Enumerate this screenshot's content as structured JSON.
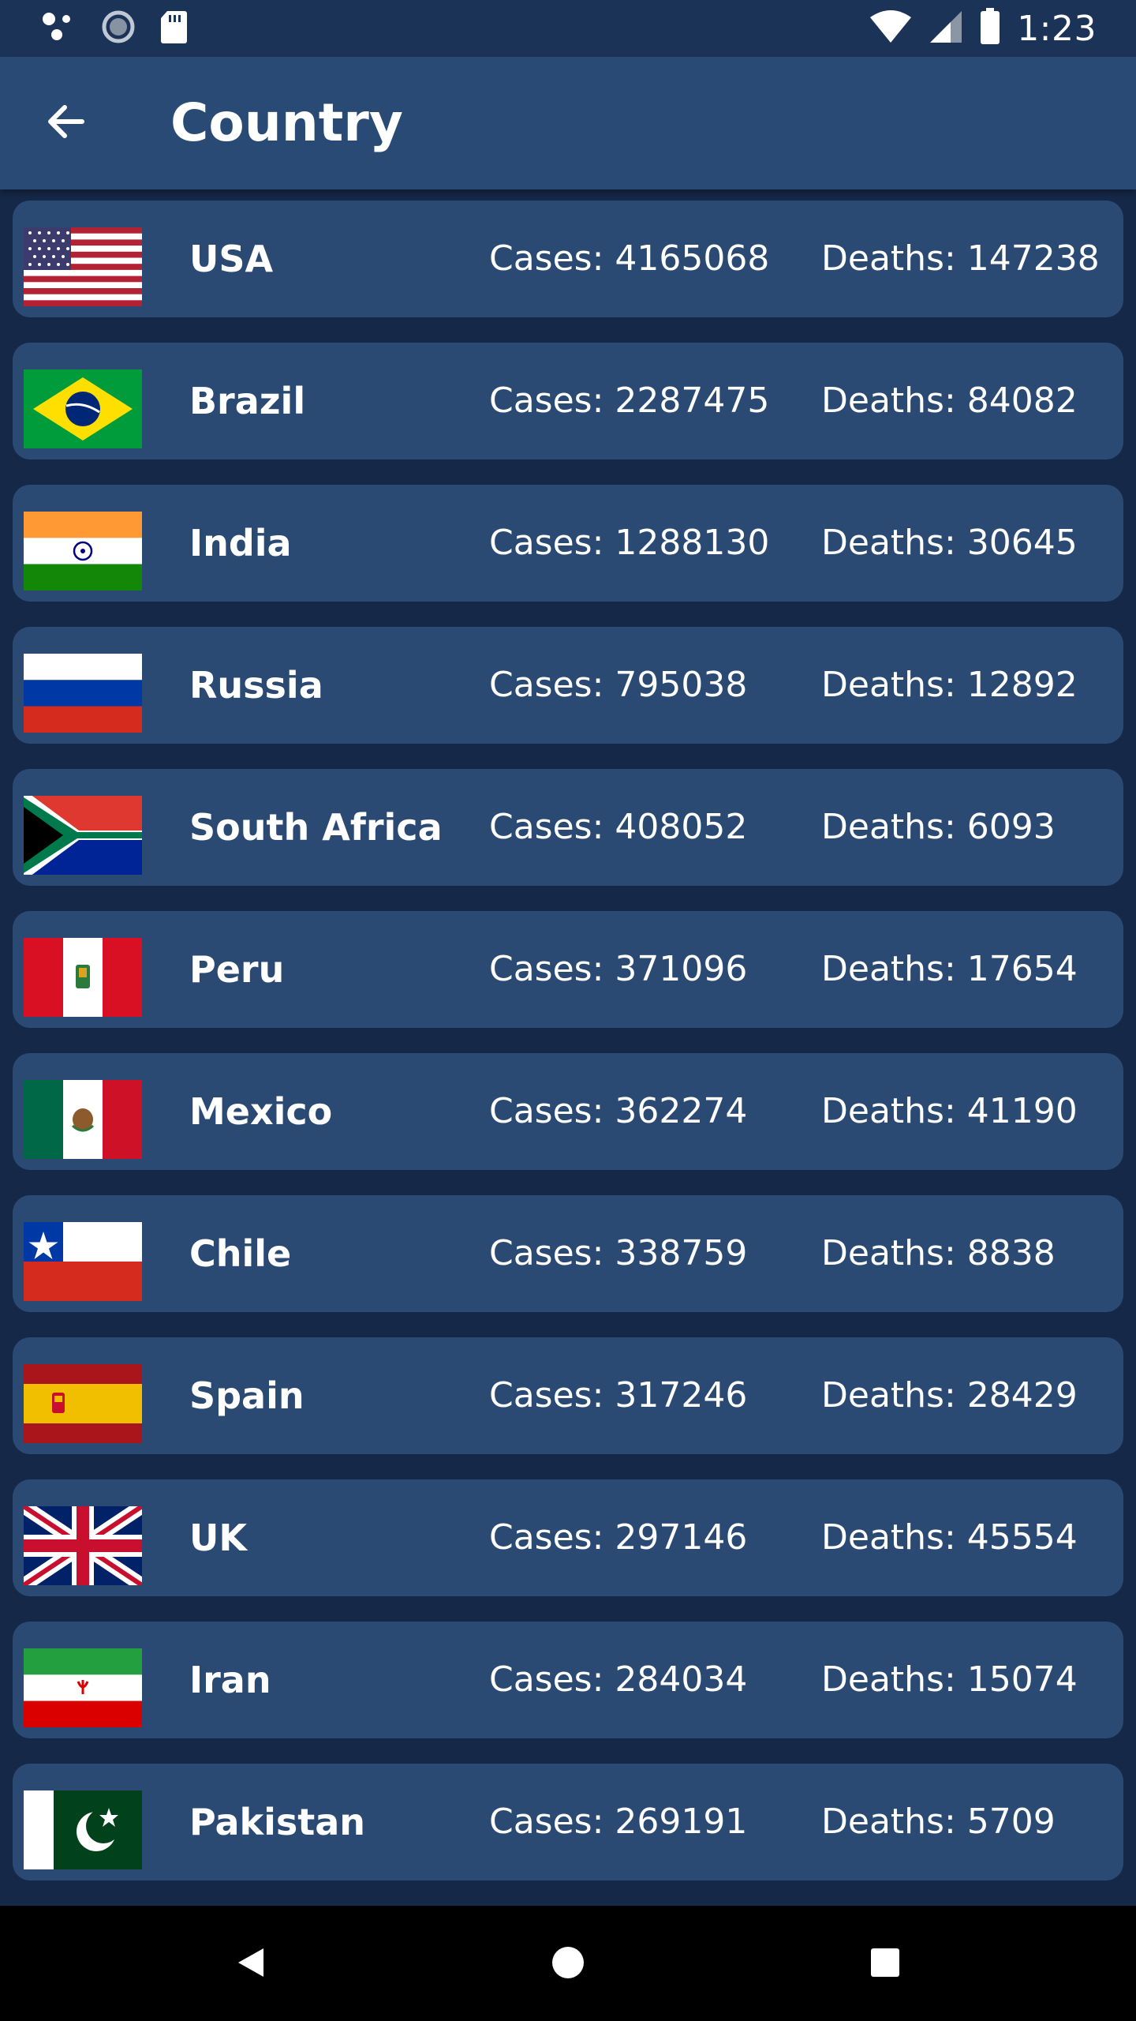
{
  "status_bar": {
    "time": "1:23",
    "icons_left": [
      "assistant-dots-icon",
      "sync-spinner-icon",
      "sd-card-icon"
    ],
    "icons_right": [
      "wifi-icon",
      "cell-signal-icon",
      "battery-icon"
    ]
  },
  "app_bar": {
    "back_icon": "arrow-left-icon",
    "title": "Country"
  },
  "countries": [
    {
      "name": "USA",
      "cases": "Cases: 4165068",
      "deaths": "Deaths: 147238",
      "flag": "us"
    },
    {
      "name": "Brazil",
      "cases": "Cases: 2287475",
      "deaths": "Deaths: 84082",
      "flag": "br"
    },
    {
      "name": "India",
      "cases": "Cases: 1288130",
      "deaths": "Deaths: 30645",
      "flag": "in"
    },
    {
      "name": "Russia",
      "cases": "Cases: 795038",
      "deaths": "Deaths: 12892",
      "flag": "ru"
    },
    {
      "name": "South Africa",
      "cases": "Cases: 408052",
      "deaths": "Deaths: 6093",
      "flag": "za"
    },
    {
      "name": "Peru",
      "cases": "Cases: 371096",
      "deaths": "Deaths: 17654",
      "flag": "pe"
    },
    {
      "name": "Mexico",
      "cases": "Cases: 362274",
      "deaths": "Deaths: 41190",
      "flag": "mx"
    },
    {
      "name": "Chile",
      "cases": "Cases: 338759",
      "deaths": "Deaths: 8838",
      "flag": "cl"
    },
    {
      "name": "Spain",
      "cases": "Cases: 317246",
      "deaths": "Deaths: 28429",
      "flag": "es"
    },
    {
      "name": "UK",
      "cases": "Cases: 297146",
      "deaths": "Deaths: 45554",
      "flag": "gb"
    },
    {
      "name": "Iran",
      "cases": "Cases: 284034",
      "deaths": "Deaths: 15074",
      "flag": "ir"
    },
    {
      "name": "Pakistan",
      "cases": "Cases: 269191",
      "deaths": "Deaths: 5709",
      "flag": "pk"
    }
  ],
  "nav_bar": {
    "back": "nav-back-icon",
    "home": "nav-home-icon",
    "recents": "nav-recents-icon"
  },
  "colors": {
    "background": "#152848",
    "app_bar": "#284a74",
    "card": "#2a4a74",
    "text": "#ffffff"
  }
}
